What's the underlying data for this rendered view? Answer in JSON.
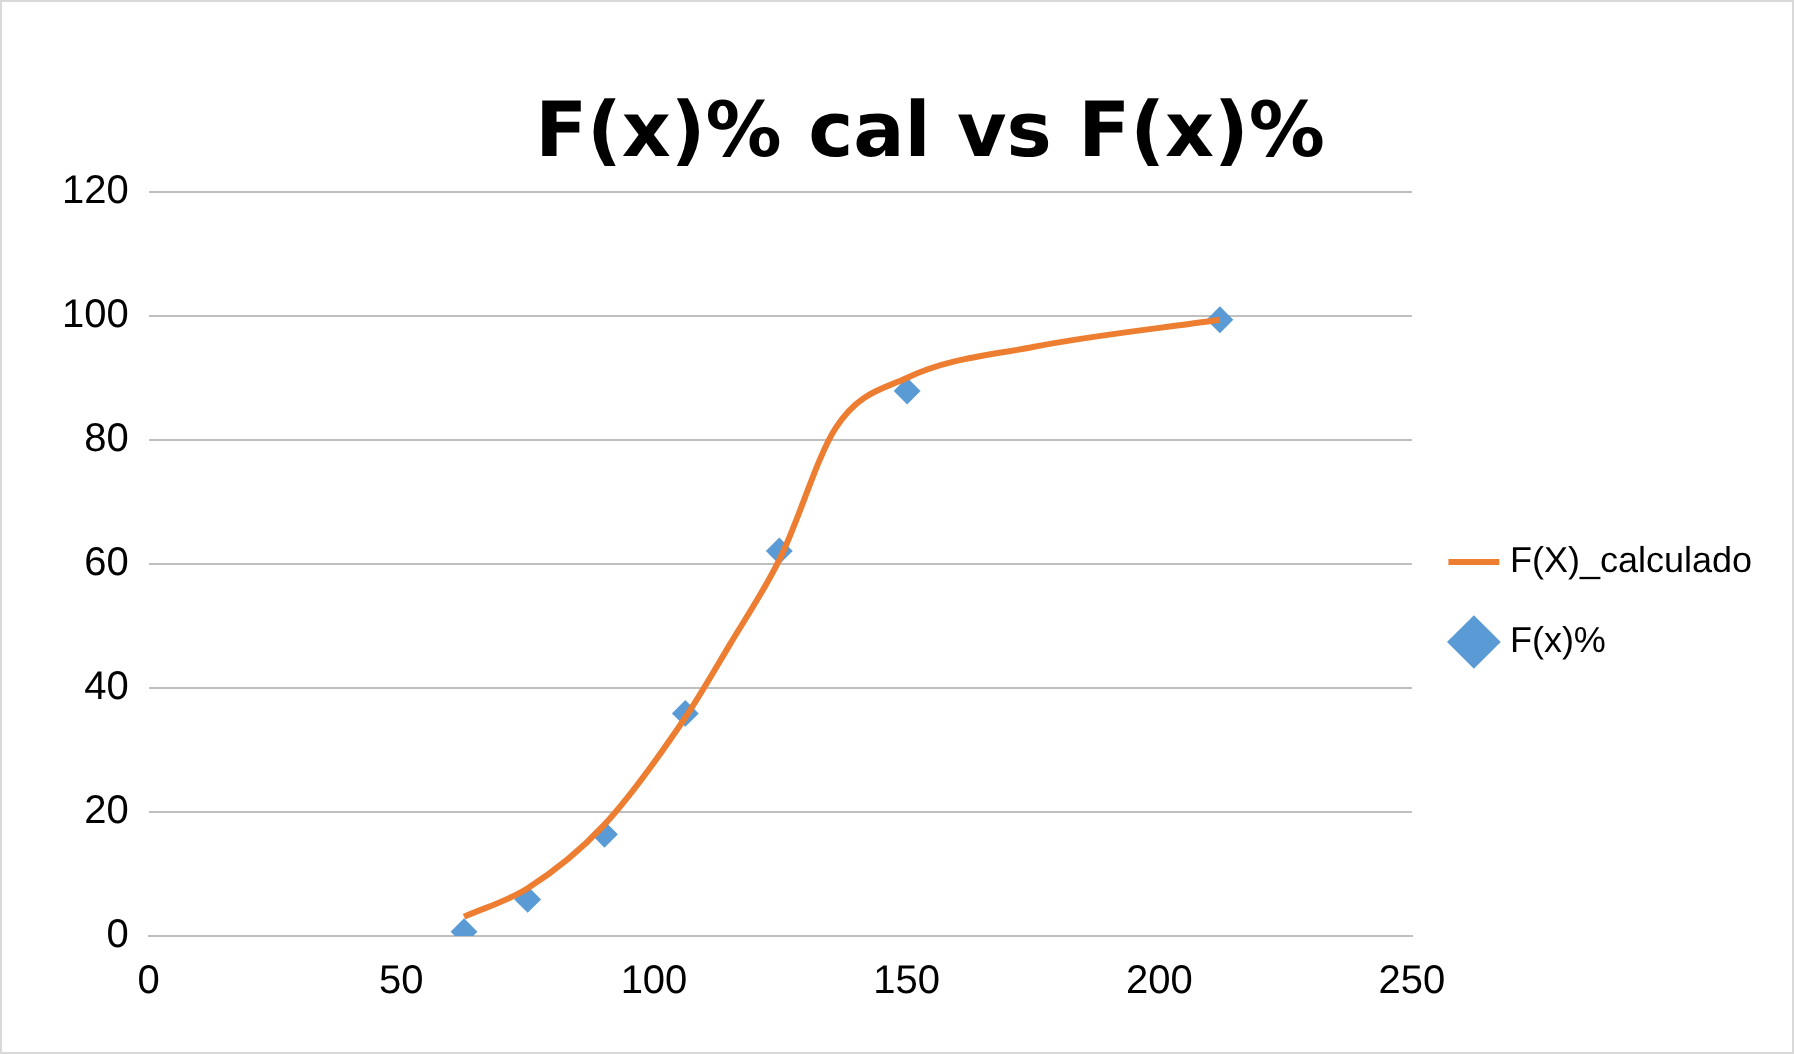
{
  "chart_data": {
    "type": "scatter",
    "title": "F(x)% cal vs F(x)%",
    "xlim": [
      0,
      250
    ],
    "xticks": [
      0,
      50,
      100,
      150,
      200,
      250
    ],
    "ylim": [
      0,
      120
    ],
    "yticks": [
      0,
      20,
      40,
      60,
      80,
      100,
      120
    ],
    "grid": "y",
    "legend": "right",
    "series": [
      {
        "name": "F(X)_calculado",
        "type": "line",
        "color": "#ed7d31",
        "marker": "none",
        "x": [
          62.4,
          75,
          90,
          106,
          115,
          125,
          136,
          150,
          175,
          212
        ],
        "values": [
          3.1,
          7.7,
          17.8,
          35,
          47,
          61,
          82,
          90,
          95,
          99.4
        ]
      },
      {
        "name": "F(x)%",
        "type": "scatter",
        "color": "#5b9bd5",
        "marker": "diamond",
        "x": [
          62.4,
          75,
          90.2,
          106.2,
          124.8,
          150.1,
          212
        ],
        "values": [
          0.7,
          5.9,
          16.4,
          35.9,
          62.1,
          87.9,
          99.4
        ]
      }
    ]
  }
}
